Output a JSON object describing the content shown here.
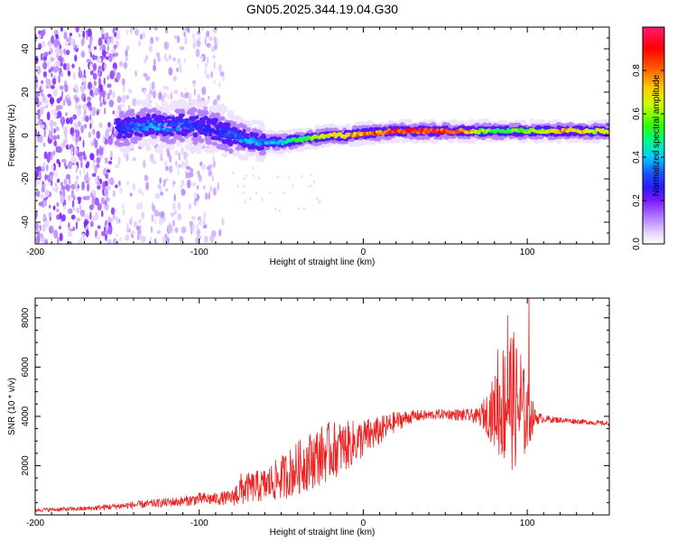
{
  "title": "GN05.2025.344.19.04.G30",
  "chart_data": [
    {
      "type": "heatmap",
      "xlabel": "Height of straight line (km)",
      "ylabel": "Frequency (Hz)",
      "xlim": [
        -200,
        150
      ],
      "ylim": [
        -50,
        50
      ],
      "xticks": [
        -200,
        -100,
        0,
        100
      ],
      "yticks": [
        -40,
        -20,
        0,
        20,
        40
      ],
      "colorbar": {
        "label": "Normalized spectral amplitude",
        "range": [
          0,
          1
        ],
        "ticks": [
          0.0,
          0.2,
          0.4,
          0.6,
          0.8
        ],
        "colors": [
          "#ffffff",
          "#e6d4ff",
          "#b37fff",
          "#7a1aff",
          "#2b1aff",
          "#1a4dff",
          "#00ccff",
          "#00ff80",
          "#33ff00",
          "#ccff00",
          "#ffcc00",
          "#ff6600",
          "#ff0000",
          "#ff1a6e"
        ]
      },
      "ridge": {
        "description": "dominant frequency trace",
        "x": [
          -150,
          -140,
          -130,
          -120,
          -110,
          -100,
          -90,
          -80,
          -70,
          -60,
          -50,
          -40,
          -30,
          -20,
          -10,
          0,
          20,
          40,
          60,
          80,
          100,
          120,
          150
        ],
        "frequency": [
          3,
          4,
          5,
          4,
          5,
          4,
          3,
          0,
          -2,
          -3,
          -3,
          -2,
          -1,
          0,
          0,
          1,
          2,
          2,
          2,
          2,
          2,
          2,
          2
        ],
        "amplitude": [
          0.35,
          0.4,
          0.45,
          0.45,
          0.4,
          0.35,
          0.3,
          0.4,
          0.45,
          0.45,
          0.5,
          0.6,
          0.65,
          0.75,
          0.8,
          0.85,
          0.95,
          0.95,
          0.9,
          0.6,
          0.7,
          0.8,
          0.75
        ]
      },
      "noise_region_x": [
        -200,
        -85
      ]
    },
    {
      "type": "line",
      "xlabel": "Height of straight line (km)",
      "ylabel": "SNR (10 * v/v)",
      "xlim": [
        -200,
        150
      ],
      "ylim": [
        0,
        8800
      ],
      "xticks": [
        -200,
        -100,
        0,
        100
      ],
      "yticks": [
        2000,
        4000,
        6000,
        8000
      ],
      "series_color": "#ee2020",
      "series": [
        {
          "name": "SNR",
          "x": [
            -200,
            -170,
            -140,
            -110,
            -100,
            -90,
            -80,
            -75,
            -70,
            -60,
            -50,
            -40,
            -30,
            -20,
            -10,
            0,
            10,
            20,
            30,
            40,
            50,
            60,
            70,
            75,
            80,
            85,
            90,
            95,
            100,
            105,
            110,
            120,
            130,
            140,
            150
          ],
          "y": [
            200,
            250,
            400,
            550,
            650,
            650,
            700,
            1000,
            1100,
            1200,
            1500,
            1900,
            2300,
            2600,
            2800,
            3100,
            3400,
            3800,
            4000,
            4050,
            4100,
            4050,
            4000,
            4100,
            4200,
            4500,
            4800,
            4300,
            4000,
            3950,
            3900,
            3850,
            3800,
            3750,
            3700
          ],
          "amplitude": [
            80,
            90,
            150,
            200,
            250,
            250,
            300,
            700,
            600,
            700,
            900,
            1100,
            1200,
            1200,
            1000,
            800,
            600,
            400,
            250,
            200,
            200,
            250,
            300,
            800,
            1500,
            2500,
            3000,
            2500,
            1500,
            300,
            150,
            120,
            100,
            100,
            100
          ]
        }
      ],
      "peaks": [
        {
          "x": 82,
          "y": 6700
        },
        {
          "x": 88,
          "y": 8100
        },
        {
          "x": 101,
          "y": 8900
        },
        {
          "x": 96,
          "y": 6500
        }
      ]
    }
  ]
}
